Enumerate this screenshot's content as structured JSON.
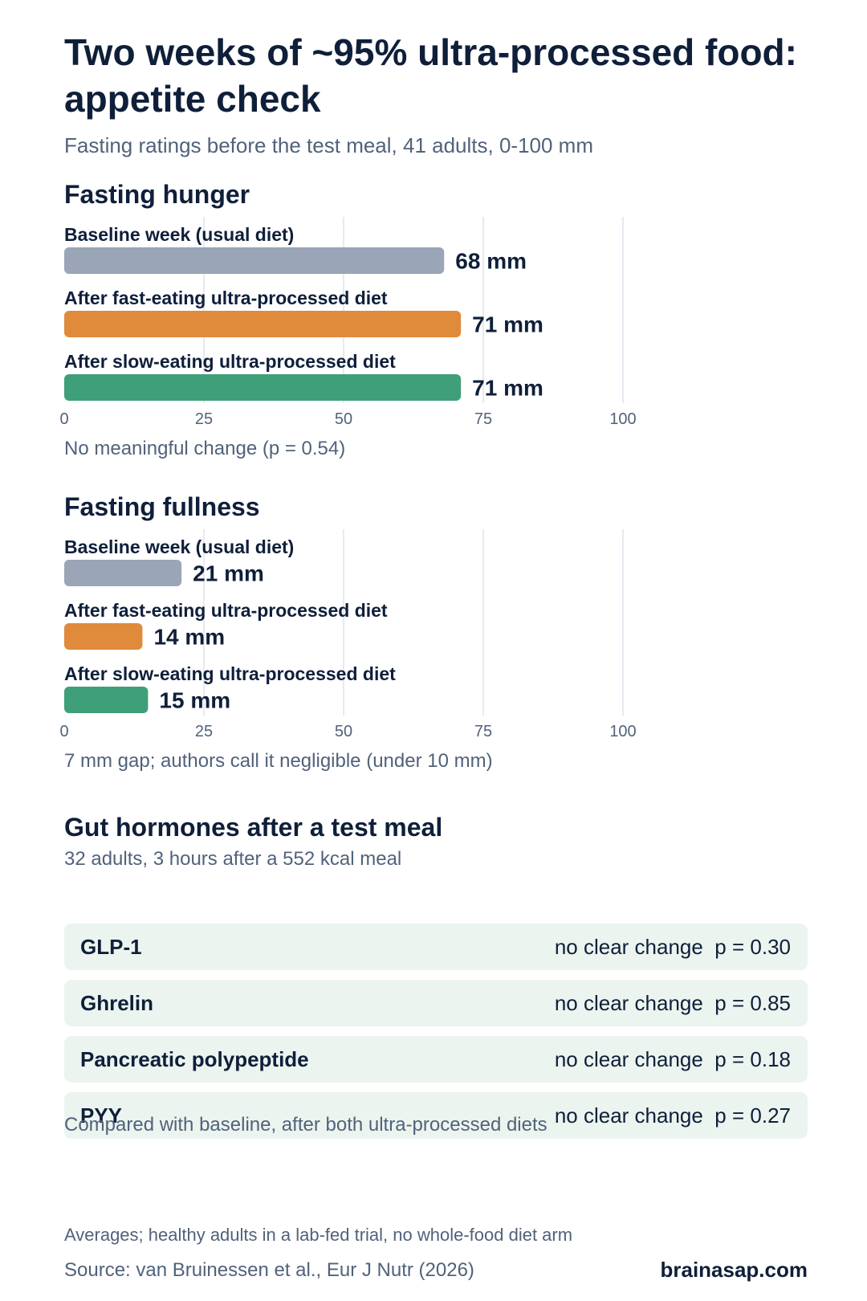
{
  "header": {
    "title": "Two weeks of ~95% ultra-processed food: appetite check",
    "subtitle": "Fasting ratings before the test meal, 41 adults, 0-100 mm"
  },
  "chart_data": [
    {
      "type": "bar",
      "orientation": "horizontal",
      "title": "Fasting hunger",
      "categories": [
        "Baseline week (usual diet)",
        "After fast-eating ultra-processed diet",
        "After slow-eating ultra-processed diet"
      ],
      "values": [
        68,
        71,
        71
      ],
      "value_labels": [
        "68 mm",
        "71 mm",
        "71 mm"
      ],
      "colors": [
        "#9aa5b8",
        "#e08a3c",
        "#3f9f78"
      ],
      "xlim": [
        0,
        100
      ],
      "xticks": [
        0,
        25,
        50,
        75,
        100
      ],
      "grid": true,
      "note": "No meaningful change (p = 0.54)"
    },
    {
      "type": "bar",
      "orientation": "horizontal",
      "title": "Fasting fullness",
      "categories": [
        "Baseline week (usual diet)",
        "After fast-eating ultra-processed diet",
        "After slow-eating ultra-processed diet"
      ],
      "values": [
        21,
        14,
        15
      ],
      "value_labels": [
        "21 mm",
        "14 mm",
        "15 mm"
      ],
      "colors": [
        "#9aa5b8",
        "#e08a3c",
        "#3f9f78"
      ],
      "xlim": [
        0,
        100
      ],
      "xticks": [
        0,
        25,
        50,
        75,
        100
      ],
      "grid": true,
      "note": "7 mm gap; authors call it negligible (under 10 mm)"
    }
  ],
  "hormones": {
    "title": "Gut hormones after a test meal",
    "subtitle": "32 adults, 3 hours after a 552 kcal meal",
    "rows": [
      {
        "name": "GLP-1",
        "status": "no clear change",
        "p": "p = 0.30"
      },
      {
        "name": "Ghrelin",
        "status": "no clear change",
        "p": "p = 0.85"
      },
      {
        "name": "Pancreatic polypeptide",
        "status": "no clear change",
        "p": "p = 0.18"
      },
      {
        "name": "PYY",
        "status": "no clear change",
        "p": "p = 0.27"
      }
    ],
    "note": "Compared with baseline, after both ultra-processed diets"
  },
  "footer": {
    "note": "Averages; healthy adults in a lab-fed trial, no whole-food diet arm",
    "source": "Source: van Bruinessen et al., Eur J Nutr (2026)",
    "brand": "brainasap.com"
  },
  "colors": {
    "baseline": "#9aa5b8",
    "fast": "#e08a3c",
    "slow": "#3f9f78",
    "grid": "#dde4ee",
    "text": "#0f1f3a",
    "muted": "#51627a",
    "row_bg": "#ecf4ef"
  }
}
